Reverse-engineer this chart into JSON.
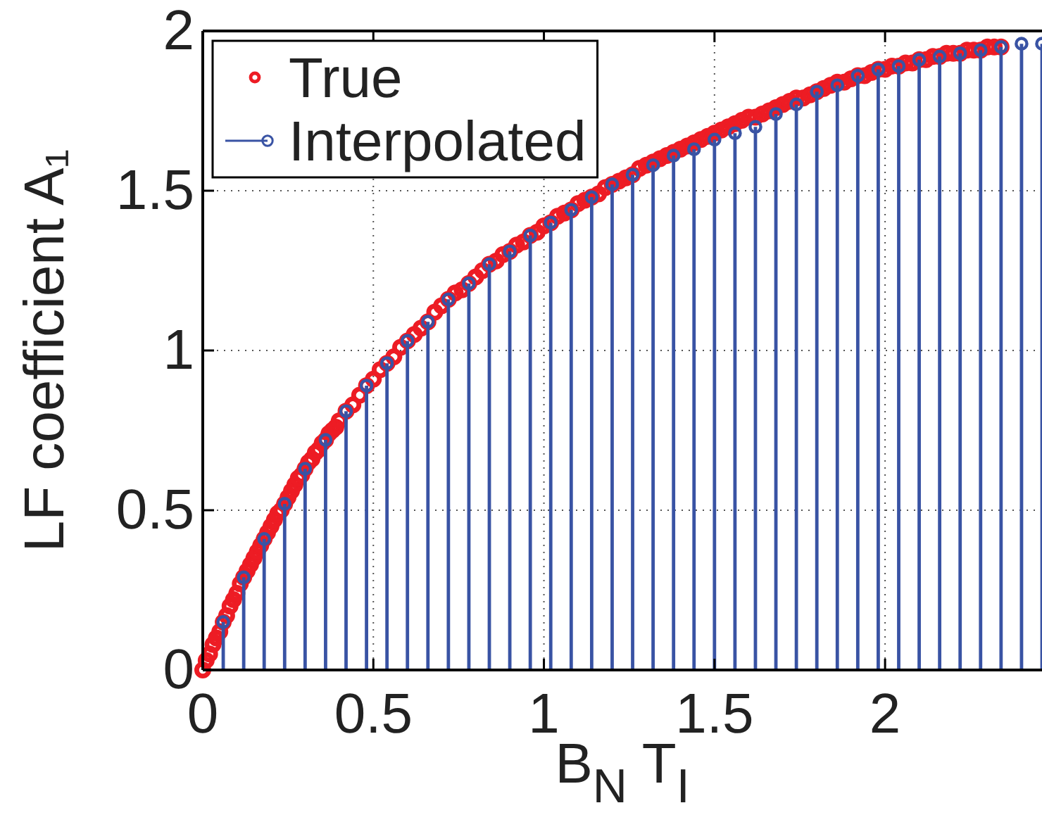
{
  "chart_data": {
    "type": "scatter",
    "xlabel": "B$_{N}$ T$_{I}$",
    "ylabel": "LF coefficient A₁",
    "xlim": [
      0,
      2.46
    ],
    "ylim": [
      0,
      2
    ],
    "xticks": [
      0,
      0.5,
      1,
      1.5,
      2
    ],
    "yticks": [
      0,
      0.5,
      1,
      1.5,
      2
    ],
    "grid": true,
    "legend": "top left",
    "marker": "circle",
    "series": [
      {
        "name": "True",
        "color": "#ed1c24",
        "x": [
          0,
          0.01,
          0.02,
          0.03,
          0.04,
          0.05,
          0.06,
          0.07,
          0.08,
          0.09,
          0.1,
          0.11,
          0.12,
          0.13,
          0.14,
          0.15,
          0.16,
          0.17,
          0.18,
          0.19,
          0.2,
          0.21,
          0.22,
          0.23,
          0.24,
          0.25,
          0.26,
          0.27,
          0.28,
          0.29,
          0.3,
          0.31,
          0.32,
          0.33,
          0.34,
          0.35,
          0.36,
          0.37,
          0.38,
          0.39,
          0.4,
          0.42,
          0.44,
          0.46,
          0.48,
          0.5,
          0.52,
          0.54,
          0.56,
          0.58,
          0.6,
          0.62,
          0.64,
          0.66,
          0.68,
          0.7,
          0.72,
          0.74,
          0.76,
          0.78,
          0.8,
          0.82,
          0.84,
          0.86,
          0.88,
          0.9,
          0.92,
          0.94,
          0.96,
          0.98,
          1,
          1.02,
          1.04,
          1.06,
          1.08,
          1.1,
          1.12,
          1.14,
          1.16,
          1.18,
          1.2,
          1.22,
          1.24,
          1.26,
          1.28,
          1.3,
          1.32,
          1.34,
          1.36,
          1.38,
          1.4,
          1.42,
          1.44,
          1.46,
          1.48,
          1.5,
          1.52,
          1.54,
          1.56,
          1.58,
          1.6,
          1.62,
          1.64,
          1.66,
          1.68,
          1.7,
          1.72,
          1.74,
          1.76,
          1.78,
          1.8,
          1.82,
          1.84,
          1.86,
          1.88,
          1.9,
          1.92,
          1.94,
          1.96,
          1.98,
          2,
          2.02,
          2.04,
          2.06,
          2.08,
          2.1,
          2.12,
          2.14,
          2.16,
          2.18,
          2.2,
          2.22,
          2.24,
          2.26,
          2.28,
          2.3,
          2.32,
          2.34
        ],
        "values": [
          0,
          0.03,
          0.05,
          0.08,
          0.1,
          0.12,
          0.15,
          0.17,
          0.2,
          0.22,
          0.24,
          0.27,
          0.29,
          0.31,
          0.33,
          0.35,
          0.37,
          0.39,
          0.41,
          0.43,
          0.45,
          0.47,
          0.49,
          0.5,
          0.52,
          0.54,
          0.56,
          0.58,
          0.6,
          0.61,
          0.63,
          0.65,
          0.66,
          0.68,
          0.69,
          0.71,
          0.72,
          0.74,
          0.75,
          0.76,
          0.78,
          0.81,
          0.83,
          0.86,
          0.89,
          0.91,
          0.94,
          0.96,
          0.98,
          1.01,
          1.03,
          1.05,
          1.07,
          1.09,
          1.12,
          1.14,
          1.16,
          1.18,
          1.19,
          1.21,
          1.23,
          1.25,
          1.27,
          1.28,
          1.3,
          1.31,
          1.33,
          1.34,
          1.36,
          1.37,
          1.39,
          1.4,
          1.42,
          1.43,
          1.44,
          1.46,
          1.47,
          1.48,
          1.49,
          1.51,
          1.52,
          1.53,
          1.54,
          1.55,
          1.57,
          1.58,
          1.59,
          1.6,
          1.61,
          1.62,
          1.63,
          1.64,
          1.65,
          1.66,
          1.67,
          1.68,
          1.69,
          1.7,
          1.71,
          1.72,
          1.73,
          1.73,
          1.74,
          1.75,
          1.76,
          1.77,
          1.78,
          1.79,
          1.79,
          1.8,
          1.81,
          1.82,
          1.83,
          1.84,
          1.84,
          1.85,
          1.86,
          1.86,
          1.87,
          1.88,
          1.88,
          1.89,
          1.89,
          1.9,
          1.9,
          1.91,
          1.91,
          1.92,
          1.92,
          1.93,
          1.93,
          1.93,
          1.94,
          1.94,
          1.94,
          1.95,
          1.95,
          1.95
        ]
      },
      {
        "name": "Interpolated",
        "type": "lollipop",
        "color": "#3953a4",
        "x": [
          0.06,
          0.12,
          0.18,
          0.24,
          0.3,
          0.36,
          0.42,
          0.48,
          0.54,
          0.6,
          0.66,
          0.72,
          0.78,
          0.84,
          0.9,
          0.96,
          1.02,
          1.08,
          1.14,
          1.2,
          1.26,
          1.32,
          1.38,
          1.44,
          1.5,
          1.56,
          1.62,
          1.68,
          1.74,
          1.8,
          1.86,
          1.92,
          1.98,
          2.04,
          2.1,
          2.16,
          2.22,
          2.28,
          2.34,
          2.4,
          2.46
        ],
        "values": [
          0.15,
          0.29,
          0.41,
          0.52,
          0.63,
          0.72,
          0.81,
          0.89,
          0.96,
          1.03,
          1.09,
          1.16,
          1.21,
          1.27,
          1.31,
          1.36,
          1.4,
          1.44,
          1.48,
          1.52,
          1.55,
          1.58,
          1.61,
          1.63,
          1.66,
          1.68,
          1.7,
          1.74,
          1.77,
          1.81,
          1.83,
          1.86,
          1.88,
          1.89,
          1.91,
          1.92,
          1.93,
          1.94,
          1.95,
          1.96,
          1.96
        ]
      }
    ]
  }
}
